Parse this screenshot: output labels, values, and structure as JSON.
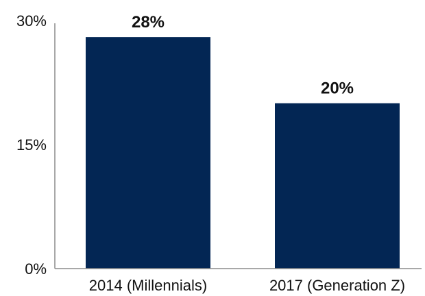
{
  "chart_data": {
    "type": "bar",
    "categories": [
      "2014 (Millennials)",
      "2017 (Generation Z)"
    ],
    "values": [
      28,
      20
    ],
    "data_labels": [
      "28%",
      "20%"
    ],
    "title": "",
    "xlabel": "",
    "ylabel": "",
    "ylim": [
      0,
      30
    ],
    "yticks": [
      0,
      15,
      30
    ],
    "ytick_labels": [
      "0%",
      "15%",
      "30%"
    ],
    "grid": false,
    "legend": "none",
    "colors": {
      "bar": "#032654",
      "axis": "#8c8c8c",
      "text": "#111111"
    }
  }
}
